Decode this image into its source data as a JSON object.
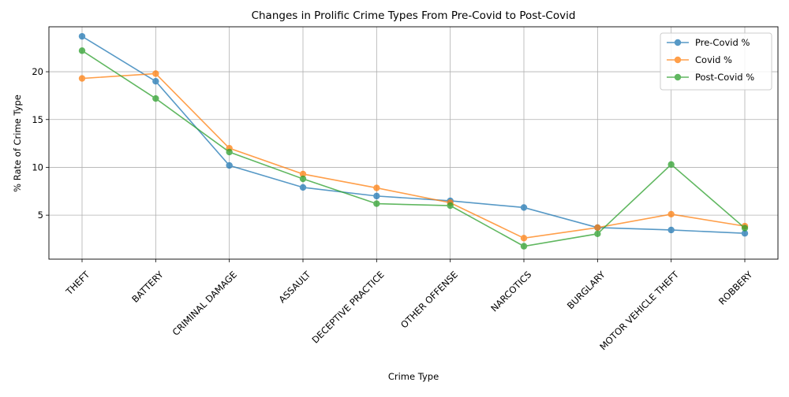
{
  "chart_data": {
    "type": "line",
    "title": "Changes in Prolific Crime Types From Pre-Covid to Post-Covid",
    "xlabel": "Crime Type",
    "ylabel": "% Rate of Crime Type",
    "categories": [
      "THEFT",
      "BATTERY",
      "CRIMINAL DAMAGE",
      "ASSAULT",
      "DECEPTIVE PRACTICE",
      "OTHER OFFENSE",
      "NARCOTICS",
      "BURGLARY",
      "MOTOR VEHICLE THEFT",
      "ROBBERY"
    ],
    "ylim": [
      0.4,
      24.7
    ],
    "yticks": [
      5,
      10,
      15,
      20
    ],
    "grid": true,
    "legend_position": "top-right",
    "series": [
      {
        "name": "Pre-Covid %",
        "color": "#1f77b4",
        "values": [
          23.7,
          19.0,
          10.2,
          7.9,
          7.0,
          6.5,
          5.8,
          3.7,
          3.45,
          3.1
        ]
      },
      {
        "name": "Covid %",
        "color": "#ff7f0e",
        "values": [
          19.3,
          19.8,
          12.0,
          9.3,
          7.85,
          6.3,
          2.6,
          3.7,
          5.1,
          3.85
        ]
      },
      {
        "name": "Post-Covid %",
        "color": "#2ca02c",
        "values": [
          22.2,
          17.2,
          11.6,
          8.8,
          6.2,
          6.0,
          1.75,
          3.05,
          10.3,
          3.65
        ]
      }
    ]
  }
}
